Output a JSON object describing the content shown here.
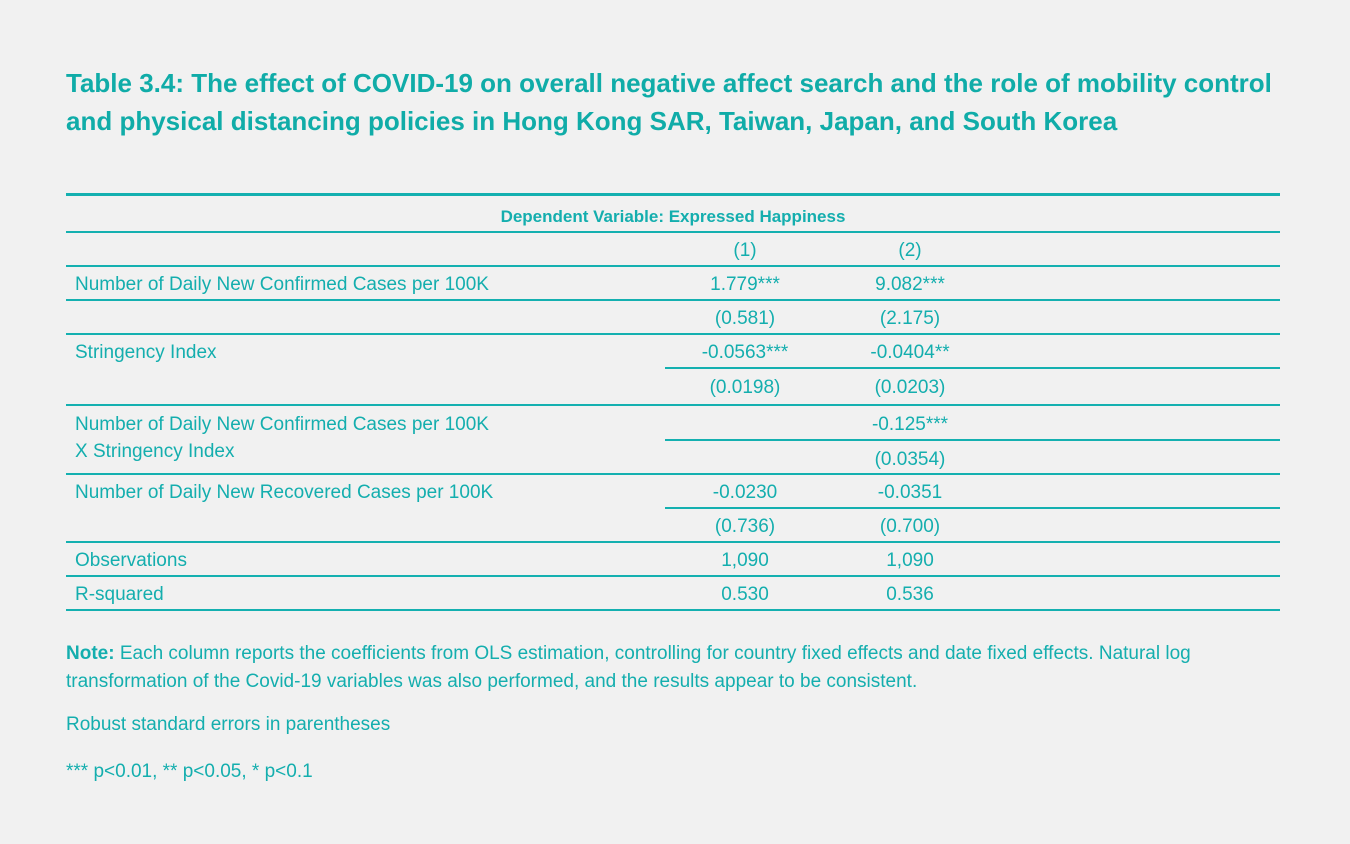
{
  "title": "Table 3.4: The effect of COVID-19 on overall negative affect search and the role of mobility control and physical distancing policies in Hong Kong SAR, Taiwan, Japan, and South Korea",
  "table": {
    "dependent_variable": "Dependent Variable: Expressed Happiness",
    "columns": [
      "(1)",
      "(2)"
    ],
    "rows": [
      {
        "label": "Number of Daily New Confirmed Cases per 100K",
        "c1": "1.779***",
        "c2": "9.082***",
        "se1": "(0.581)",
        "se2": "(2.175)"
      },
      {
        "label": "Stringency Index",
        "c1": "-0.0563***",
        "c2": "-0.0404**",
        "se1": "(0.0198)",
        "se2": "(0.0203)"
      },
      {
        "label": "Number of Daily New Confirmed Cases per 100K",
        "label2": "X Stringency Index",
        "c1": "",
        "c2": "-0.125***",
        "se1": "",
        "se2": "(0.0354)"
      },
      {
        "label": "Number of Daily New Recovered Cases per 100K",
        "c1": "-0.0230",
        "c2": "-0.0351",
        "se1": "(0.736)",
        "se2": "(0.700)"
      },
      {
        "label": "Observations",
        "c1": "1,090",
        "c2": "1,090"
      },
      {
        "label": "R-squared",
        "c1": "0.530",
        "c2": "0.536"
      }
    ]
  },
  "notes": {
    "note_label": "Note:",
    "note_text": " Each column reports the coefficients from OLS estimation, controlling for country fixed effects and date fixed effects. Natural log transformation of the Covid-19 variables was also performed, and the results appear to be consistent.",
    "robust": "Robust standard errors in parentheses",
    "significance": "*** p<0.01, ** p<0.05, * p<0.1"
  },
  "colors": {
    "accent": "#14b0b0",
    "background": "#f1f1f1"
  }
}
